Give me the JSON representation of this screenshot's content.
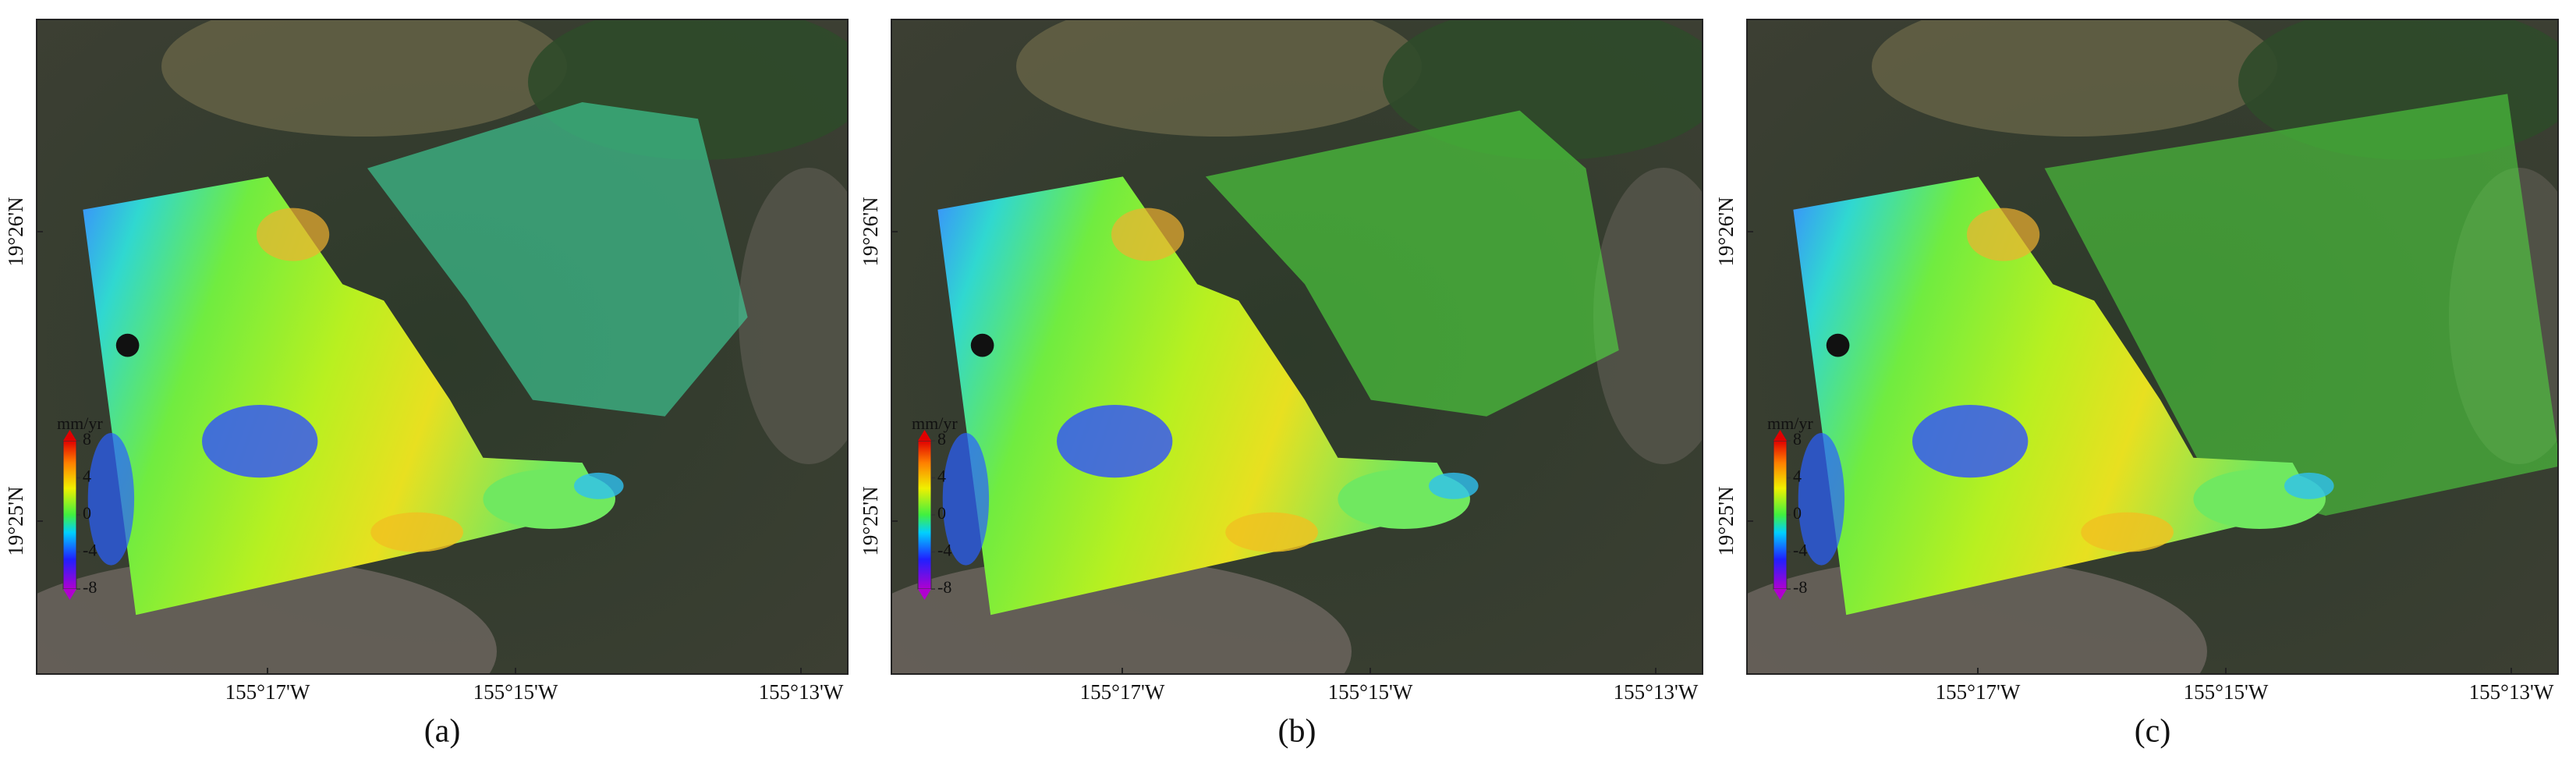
{
  "panels": [
    {
      "caption": "(a)"
    },
    {
      "caption": "(b)"
    },
    {
      "caption": "(c)"
    }
  ],
  "x_axis": {
    "labels": [
      "155°17'W",
      "155°15'W",
      "155°13'W"
    ]
  },
  "y_axis": {
    "labels": [
      "19°26'N",
      "19°25'N"
    ]
  },
  "colorbar": {
    "unit": "mm/yr",
    "ticks": [
      8,
      4,
      0,
      -4,
      -8
    ],
    "range": [
      -8,
      8
    ]
  }
}
